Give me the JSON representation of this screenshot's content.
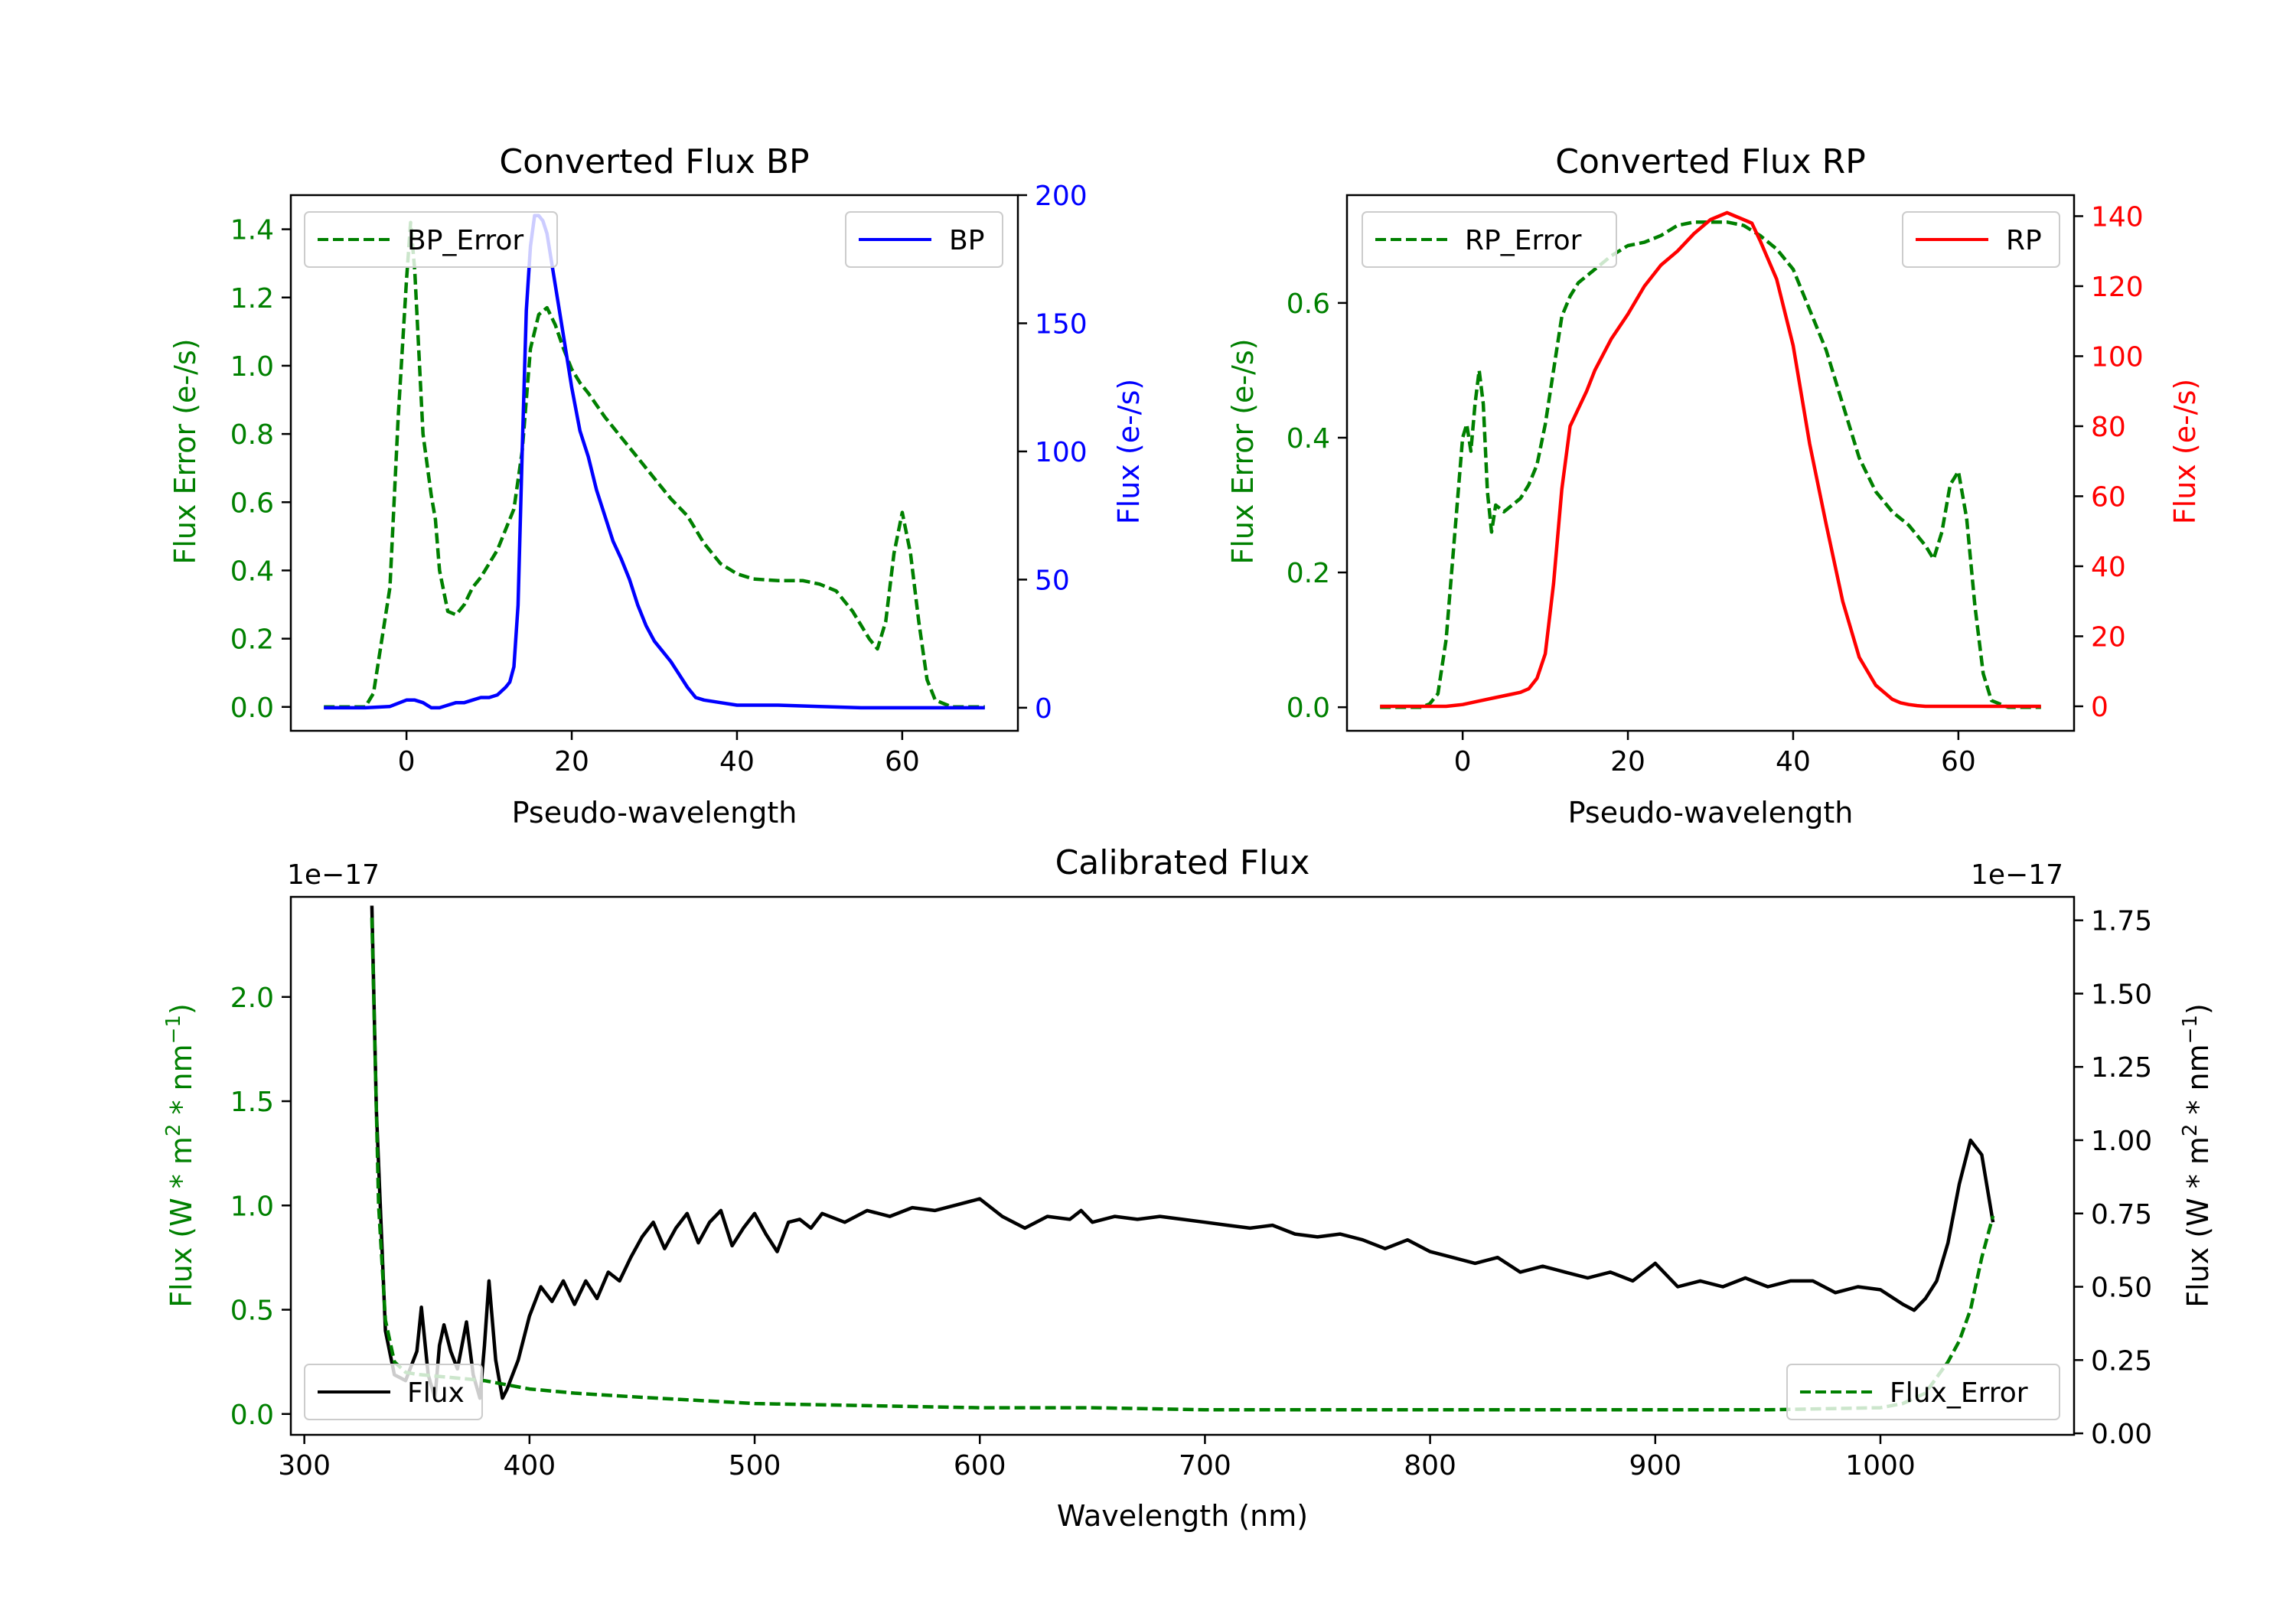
{
  "chart_data": [
    {
      "id": "bp",
      "type": "line",
      "title": "Converted Flux BP",
      "xlabel": "Pseudo-wavelength",
      "ylabel_left": "Flux Error (e-/s)",
      "ylabel_right": "Flux (e-/s)",
      "xlim": [
        -14,
        74
      ],
      "ylim_left": [
        -0.07,
        1.5
      ],
      "ylim_right": [
        -9,
        200
      ],
      "xticks": [
        0,
        20,
        40,
        60
      ],
      "yticks_left": [
        0.0,
        0.2,
        0.4,
        0.6,
        0.8,
        1.0,
        1.2,
        1.4
      ],
      "yticks_right": [
        0,
        50,
        100,
        150,
        200
      ],
      "left_axis_color": "#008000",
      "right_axis_color": "#0000ff",
      "series": [
        {
          "name": "BP_Error",
          "axis": "left",
          "color": "#008000",
          "style": "dashed",
          "legend": "top-left",
          "x": [
            -10,
            -5,
            -4,
            -2,
            -1,
            0,
            0.5,
            1,
            2,
            3,
            3.5,
            4,
            5,
            6,
            7,
            8,
            9,
            10,
            11,
            12,
            13,
            14,
            15,
            16,
            17,
            18,
            19,
            20,
            21,
            22,
            24,
            26,
            28,
            30,
            32,
            34,
            36,
            38,
            40,
            42,
            45,
            48,
            50,
            52,
            54,
            56,
            57,
            58,
            59,
            60,
            61,
            62,
            63,
            64,
            66,
            70
          ],
          "y": [
            0,
            0,
            0.04,
            0.35,
            0.85,
            1.25,
            1.42,
            1.28,
            0.8,
            0.62,
            0.55,
            0.4,
            0.28,
            0.27,
            0.3,
            0.35,
            0.38,
            0.42,
            0.46,
            0.52,
            0.58,
            0.75,
            1.05,
            1.15,
            1.17,
            1.12,
            1.05,
            0.99,
            0.95,
            0.92,
            0.85,
            0.79,
            0.73,
            0.67,
            0.61,
            0.56,
            0.48,
            0.42,
            0.39,
            0.375,
            0.37,
            0.37,
            0.36,
            0.34,
            0.28,
            0.2,
            0.17,
            0.25,
            0.45,
            0.57,
            0.45,
            0.25,
            0.08,
            0.02,
            0,
            0
          ]
        },
        {
          "name": "BP",
          "axis": "right",
          "color": "#0000ff",
          "style": "solid",
          "legend": "top-right",
          "x": [
            -10,
            -5,
            -2,
            0,
            1,
            2,
            3,
            4,
            5,
            6,
            7,
            8,
            9,
            10,
            11,
            12,
            12.5,
            13,
            13.5,
            14,
            14.5,
            15,
            15.5,
            16,
            16.5,
            17,
            18,
            19,
            20,
            21,
            22,
            23,
            24,
            25,
            26,
            27,
            28,
            29,
            30,
            31,
            32,
            33,
            34,
            35,
            36,
            38,
            40,
            45,
            50,
            55,
            60,
            65,
            70
          ],
          "y": [
            0,
            0,
            0.5,
            3,
            3,
            2,
            0,
            0,
            1,
            2,
            2,
            3,
            4,
            4,
            5,
            8,
            10,
            16,
            40,
            100,
            155,
            180,
            192,
            192,
            190,
            185,
            165,
            145,
            125,
            108,
            98,
            85,
            75,
            65,
            58,
            50,
            40,
            32,
            26,
            22,
            18,
            13,
            8,
            4,
            3,
            2,
            1,
            1,
            0.5,
            0,
            0,
            0,
            0
          ]
        }
      ]
    },
    {
      "id": "rp",
      "type": "line",
      "title": "Converted Flux RP",
      "xlabel": "Pseudo-wavelength",
      "ylabel_left": "Flux Error (e-/s)",
      "ylabel_right": "Flux (e-/s)",
      "xlim": [
        -14,
        74
      ],
      "ylim_left": [
        -0.035,
        0.76
      ],
      "ylim_right": [
        -7,
        146
      ],
      "xticks": [
        0,
        20,
        40,
        60
      ],
      "yticks_left": [
        0.0,
        0.2,
        0.4,
        0.6
      ],
      "yticks_right": [
        0,
        20,
        40,
        60,
        80,
        100,
        120,
        140
      ],
      "left_axis_color": "#008000",
      "right_axis_color": "#ff0000",
      "series": [
        {
          "name": "RP_Error",
          "axis": "left",
          "color": "#008000",
          "style": "dashed",
          "legend": "top-left",
          "x": [
            -10,
            -5,
            -4,
            -3,
            -2,
            -1,
            0,
            0.5,
            1,
            1.5,
            2,
            2.5,
            3,
            3.5,
            4,
            5,
            6,
            7,
            8,
            9,
            10,
            11,
            12,
            13,
            14,
            16,
            18,
            20,
            22,
            24,
            26,
            28,
            30,
            32,
            34,
            36,
            38,
            40,
            42,
            44,
            46,
            48,
            50,
            52,
            54,
            56,
            57,
            58,
            59,
            60,
            61,
            62,
            63,
            64,
            66,
            70
          ],
          "y": [
            0,
            0,
            0.005,
            0.02,
            0.1,
            0.25,
            0.4,
            0.42,
            0.38,
            0.45,
            0.5,
            0.45,
            0.32,
            0.26,
            0.3,
            0.29,
            0.3,
            0.31,
            0.33,
            0.36,
            0.42,
            0.5,
            0.58,
            0.61,
            0.63,
            0.65,
            0.67,
            0.685,
            0.69,
            0.7,
            0.715,
            0.72,
            0.72,
            0.72,
            0.715,
            0.7,
            0.68,
            0.65,
            0.59,
            0.53,
            0.45,
            0.37,
            0.32,
            0.29,
            0.27,
            0.24,
            0.22,
            0.26,
            0.33,
            0.35,
            0.28,
            0.15,
            0.05,
            0.01,
            0,
            0
          ]
        },
        {
          "name": "RP",
          "axis": "right",
          "color": "#ff0000",
          "style": "solid",
          "legend": "top-right",
          "x": [
            -10,
            -5,
            -2,
            0,
            2,
            4,
            6,
            7,
            8,
            9,
            10,
            11,
            12,
            13,
            14,
            15,
            16,
            18,
            20,
            22,
            24,
            26,
            28,
            30,
            31,
            32,
            33,
            34,
            35,
            36,
            38,
            40,
            42,
            44,
            46,
            48,
            50,
            51,
            52,
            53,
            54,
            55,
            56,
            58,
            60,
            65,
            70
          ],
          "y": [
            0,
            0,
            0,
            0.5,
            1.5,
            2.5,
            3.5,
            4,
            5,
            8,
            15,
            35,
            62,
            80,
            85,
            90,
            96,
            105,
            112,
            120,
            126,
            130,
            135,
            139,
            140,
            141,
            140,
            139,
            138,
            133,
            122,
            103,
            75,
            52,
            30,
            14,
            6,
            4,
            2,
            1,
            0.5,
            0.2,
            0,
            0,
            0,
            0,
            0
          ]
        }
      ]
    },
    {
      "id": "calibrated",
      "type": "line",
      "title": "Calibrated Flux",
      "xlabel": "Wavelength (nm)",
      "ylabel_left": "Flux (W * m2 * nm−1)",
      "ylabel_right": "Flux (W * m2 * nm−1)",
      "offset_left": "1e−17",
      "offset_right": "1e−17",
      "xlim": [
        294,
        1086
      ],
      "ylim_left": [
        -0.1,
        2.48
      ],
      "ylim_right": [
        -0.005,
        1.83
      ],
      "xticks": [
        300,
        400,
        500,
        600,
        700,
        800,
        900,
        1000
      ],
      "yticks_left": [
        0.0,
        0.5,
        1.0,
        1.5,
        2.0
      ],
      "yticks_right": [
        0.0,
        0.25,
        0.5,
        0.75,
        1.0,
        1.25,
        1.5,
        1.75
      ],
      "left_axis_color": "#008000",
      "right_axis_color": "#000000",
      "series": [
        {
          "name": "Flux",
          "axis": "right",
          "color": "#000000",
          "style": "solid",
          "legend": "bottom-left",
          "x": [
            330,
            332,
            336,
            340,
            345,
            350,
            352,
            355,
            358,
            360,
            362,
            365,
            368,
            370,
            372,
            375,
            378,
            380,
            382,
            385,
            388,
            390,
            395,
            400,
            405,
            410,
            415,
            420,
            425,
            430,
            435,
            440,
            445,
            450,
            455,
            460,
            465,
            470,
            475,
            480,
            485,
            490,
            495,
            500,
            505,
            510,
            515,
            520,
            525,
            530,
            540,
            550,
            560,
            570,
            580,
            590,
            600,
            610,
            620,
            630,
            640,
            645,
            650,
            660,
            670,
            680,
            690,
            700,
            710,
            720,
            730,
            740,
            750,
            760,
            770,
            780,
            790,
            800,
            810,
            820,
            830,
            840,
            850,
            860,
            870,
            880,
            890,
            900,
            910,
            920,
            930,
            940,
            950,
            960,
            970,
            980,
            990,
            1000,
            1010,
            1015,
            1020,
            1025,
            1030,
            1035,
            1040,
            1045,
            1050
          ],
          "y": [
            1.8,
            1.1,
            0.35,
            0.2,
            0.18,
            0.28,
            0.43,
            0.2,
            0.12,
            0.3,
            0.37,
            0.28,
            0.22,
            0.3,
            0.38,
            0.2,
            0.12,
            0.3,
            0.52,
            0.25,
            0.12,
            0.15,
            0.25,
            0.4,
            0.5,
            0.45,
            0.52,
            0.44,
            0.52,
            0.46,
            0.55,
            0.52,
            0.6,
            0.67,
            0.72,
            0.63,
            0.7,
            0.75,
            0.65,
            0.72,
            0.76,
            0.64,
            0.7,
            0.75,
            0.68,
            0.62,
            0.72,
            0.73,
            0.7,
            0.75,
            0.72,
            0.76,
            0.74,
            0.77,
            0.76,
            0.78,
            0.8,
            0.74,
            0.7,
            0.74,
            0.73,
            0.76,
            0.72,
            0.74,
            0.73,
            0.74,
            0.73,
            0.72,
            0.71,
            0.7,
            0.71,
            0.68,
            0.67,
            0.68,
            0.66,
            0.63,
            0.66,
            0.62,
            0.6,
            0.58,
            0.6,
            0.55,
            0.57,
            0.55,
            0.53,
            0.55,
            0.52,
            0.58,
            0.5,
            0.52,
            0.5,
            0.53,
            0.5,
            0.52,
            0.52,
            0.48,
            0.5,
            0.49,
            0.44,
            0.42,
            0.46,
            0.52,
            0.65,
            0.85,
            1.0,
            0.95,
            0.72
          ]
        },
        {
          "name": "Flux_Error",
          "axis": "left",
          "color": "#008000",
          "style": "dashed",
          "legend": "bottom-right",
          "x": [
            330,
            333,
            336,
            340,
            345,
            350,
            360,
            370,
            380,
            390,
            400,
            420,
            450,
            500,
            550,
            600,
            650,
            700,
            750,
            800,
            850,
            900,
            950,
            1000,
            1010,
            1020,
            1030,
            1035,
            1040,
            1045,
            1050
          ],
          "y": [
            2.38,
            1.0,
            0.45,
            0.25,
            0.2,
            0.19,
            0.18,
            0.17,
            0.16,
            0.14,
            0.12,
            0.1,
            0.08,
            0.05,
            0.04,
            0.03,
            0.03,
            0.02,
            0.02,
            0.02,
            0.02,
            0.02,
            0.02,
            0.03,
            0.05,
            0.1,
            0.25,
            0.35,
            0.5,
            0.75,
            0.95
          ]
        }
      ]
    }
  ]
}
